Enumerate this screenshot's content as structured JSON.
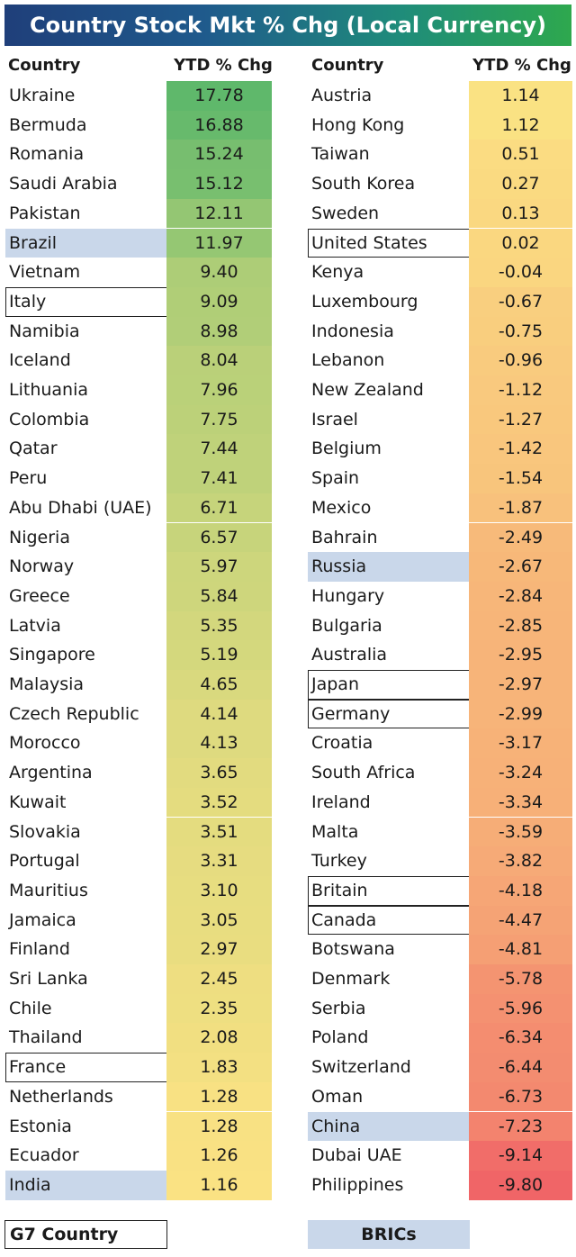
{
  "title": "Country Stock Mkt % Chg (Local Currency)",
  "headers": {
    "country": "Country",
    "ytd": "YTD % Chg"
  },
  "legend": {
    "g7": "G7 Country",
    "brics": "BRICs"
  },
  "chart_data": {
    "type": "table",
    "columns": [
      "Country",
      "YTD % Chg"
    ],
    "left": [
      {
        "country": "Ukraine",
        "value": "17.78",
        "v": 17.78
      },
      {
        "country": "Bermuda",
        "value": "16.88",
        "v": 16.88
      },
      {
        "country": "Romania",
        "value": "15.24",
        "v": 15.24
      },
      {
        "country": "Saudi Arabia",
        "value": "15.12",
        "v": 15.12
      },
      {
        "country": "Pakistan",
        "value": "12.11",
        "v": 12.11
      },
      {
        "country": "Brazil",
        "value": "11.97",
        "v": 11.97,
        "tag": "bric"
      },
      {
        "country": "Vietnam",
        "value": "9.40",
        "v": 9.4
      },
      {
        "country": "Italy",
        "value": "9.09",
        "v": 9.09,
        "tag": "g7"
      },
      {
        "country": "Namibia",
        "value": "8.98",
        "v": 8.98
      },
      {
        "country": "Iceland",
        "value": "8.04",
        "v": 8.04
      },
      {
        "country": "Lithuania",
        "value": "7.96",
        "v": 7.96
      },
      {
        "country": "Colombia",
        "value": "7.75",
        "v": 7.75
      },
      {
        "country": "Qatar",
        "value": "7.44",
        "v": 7.44
      },
      {
        "country": "Peru",
        "value": "7.41",
        "v": 7.41
      },
      {
        "country": "Abu Dhabi (UAE)",
        "value": "6.71",
        "v": 6.71
      },
      {
        "country": "Nigeria",
        "value": "6.57",
        "v": 6.57
      },
      {
        "country": "Norway",
        "value": "5.97",
        "v": 5.97
      },
      {
        "country": "Greece",
        "value": "5.84",
        "v": 5.84
      },
      {
        "country": "Latvia",
        "value": "5.35",
        "v": 5.35
      },
      {
        "country": "Singapore",
        "value": "5.19",
        "v": 5.19
      },
      {
        "country": "Malaysia",
        "value": "4.65",
        "v": 4.65
      },
      {
        "country": "Czech Republic",
        "value": "4.14",
        "v": 4.14
      },
      {
        "country": "Morocco",
        "value": "4.13",
        "v": 4.13
      },
      {
        "country": "Argentina",
        "value": "3.65",
        "v": 3.65
      },
      {
        "country": "Kuwait",
        "value": "3.52",
        "v": 3.52
      },
      {
        "country": "Slovakia",
        "value": "3.51",
        "v": 3.51
      },
      {
        "country": "Portugal",
        "value": "3.31",
        "v": 3.31
      },
      {
        "country": "Mauritius",
        "value": "3.10",
        "v": 3.1
      },
      {
        "country": "Jamaica",
        "value": "3.05",
        "v": 3.05
      },
      {
        "country": "Finland",
        "value": "2.97",
        "v": 2.97
      },
      {
        "country": "Sri Lanka",
        "value": "2.45",
        "v": 2.45
      },
      {
        "country": "Chile",
        "value": "2.35",
        "v": 2.35
      },
      {
        "country": "Thailand",
        "value": "2.08",
        "v": 2.08
      },
      {
        "country": "France",
        "value": "1.83",
        "v": 1.83,
        "tag": "g7"
      },
      {
        "country": "Netherlands",
        "value": "1.28",
        "v": 1.28
      },
      {
        "country": "Estonia",
        "value": "1.28",
        "v": 1.28
      },
      {
        "country": "Ecuador",
        "value": "1.26",
        "v": 1.26
      },
      {
        "country": "India",
        "value": "1.16",
        "v": 1.16,
        "tag": "bric"
      }
    ],
    "right": [
      {
        "country": "Austria",
        "value": "1.14",
        "v": 1.14
      },
      {
        "country": "Hong Kong",
        "value": "1.12",
        "v": 1.12
      },
      {
        "country": "Taiwan",
        "value": "0.51",
        "v": 0.51
      },
      {
        "country": "South Korea",
        "value": "0.27",
        "v": 0.27
      },
      {
        "country": "Sweden",
        "value": "0.13",
        "v": 0.13
      },
      {
        "country": "United States",
        "value": "0.02",
        "v": 0.02,
        "tag": "g7"
      },
      {
        "country": "Kenya",
        "value": "-0.04",
        "v": -0.04
      },
      {
        "country": "Luxembourg",
        "value": "-0.67",
        "v": -0.67
      },
      {
        "country": "Indonesia",
        "value": "-0.75",
        "v": -0.75
      },
      {
        "country": "Lebanon",
        "value": "-0.96",
        "v": -0.96
      },
      {
        "country": "New Zealand",
        "value": "-1.12",
        "v": -1.12
      },
      {
        "country": "Israel",
        "value": "-1.27",
        "v": -1.27
      },
      {
        "country": "Belgium",
        "value": "-1.42",
        "v": -1.42
      },
      {
        "country": "Spain",
        "value": "-1.54",
        "v": -1.54
      },
      {
        "country": "Mexico",
        "value": "-1.87",
        "v": -1.87
      },
      {
        "country": "Bahrain",
        "value": "-2.49",
        "v": -2.49
      },
      {
        "country": "Russia",
        "value": "-2.67",
        "v": -2.67,
        "tag": "bric"
      },
      {
        "country": "Hungary",
        "value": "-2.84",
        "v": -2.84
      },
      {
        "country": "Bulgaria",
        "value": "-2.85",
        "v": -2.85
      },
      {
        "country": "Australia",
        "value": "-2.95",
        "v": -2.95
      },
      {
        "country": "Japan",
        "value": "-2.97",
        "v": -2.97,
        "tag": "g7"
      },
      {
        "country": "Germany",
        "value": "-2.99",
        "v": -2.99,
        "tag": "g7"
      },
      {
        "country": "Croatia",
        "value": "-3.17",
        "v": -3.17
      },
      {
        "country": "South Africa",
        "value": "-3.24",
        "v": -3.24
      },
      {
        "country": "Ireland",
        "value": "-3.34",
        "v": -3.34
      },
      {
        "country": "Malta",
        "value": "-3.59",
        "v": -3.59
      },
      {
        "country": "Turkey",
        "value": "-3.82",
        "v": -3.82
      },
      {
        "country": "Britain",
        "value": "-4.18",
        "v": -4.18,
        "tag": "g7"
      },
      {
        "country": "Canada",
        "value": "-4.47",
        "v": -4.47,
        "tag": "g7"
      },
      {
        "country": "Botswana",
        "value": "-4.81",
        "v": -4.81
      },
      {
        "country": "Denmark",
        "value": "-5.78",
        "v": -5.78
      },
      {
        "country": "Serbia",
        "value": "-5.96",
        "v": -5.96
      },
      {
        "country": "Poland",
        "value": "-6.34",
        "v": -6.34
      },
      {
        "country": "Switzerland",
        "value": "-6.44",
        "v": -6.44
      },
      {
        "country": "Oman",
        "value": "-6.73",
        "v": -6.73
      },
      {
        "country": "China",
        "value": "-7.23",
        "v": -7.23,
        "tag": "bric"
      },
      {
        "country": "Dubai UAE",
        "value": "-9.14",
        "v": -9.14
      },
      {
        "country": "Philippines",
        "value": "-9.80",
        "v": -9.8
      }
    ],
    "colors": {
      "high": "#5fb86b",
      "mid": "#fbe283",
      "low": "#f06567",
      "g7_border": "#222222",
      "bric_fill": "#c9d7ea"
    }
  }
}
